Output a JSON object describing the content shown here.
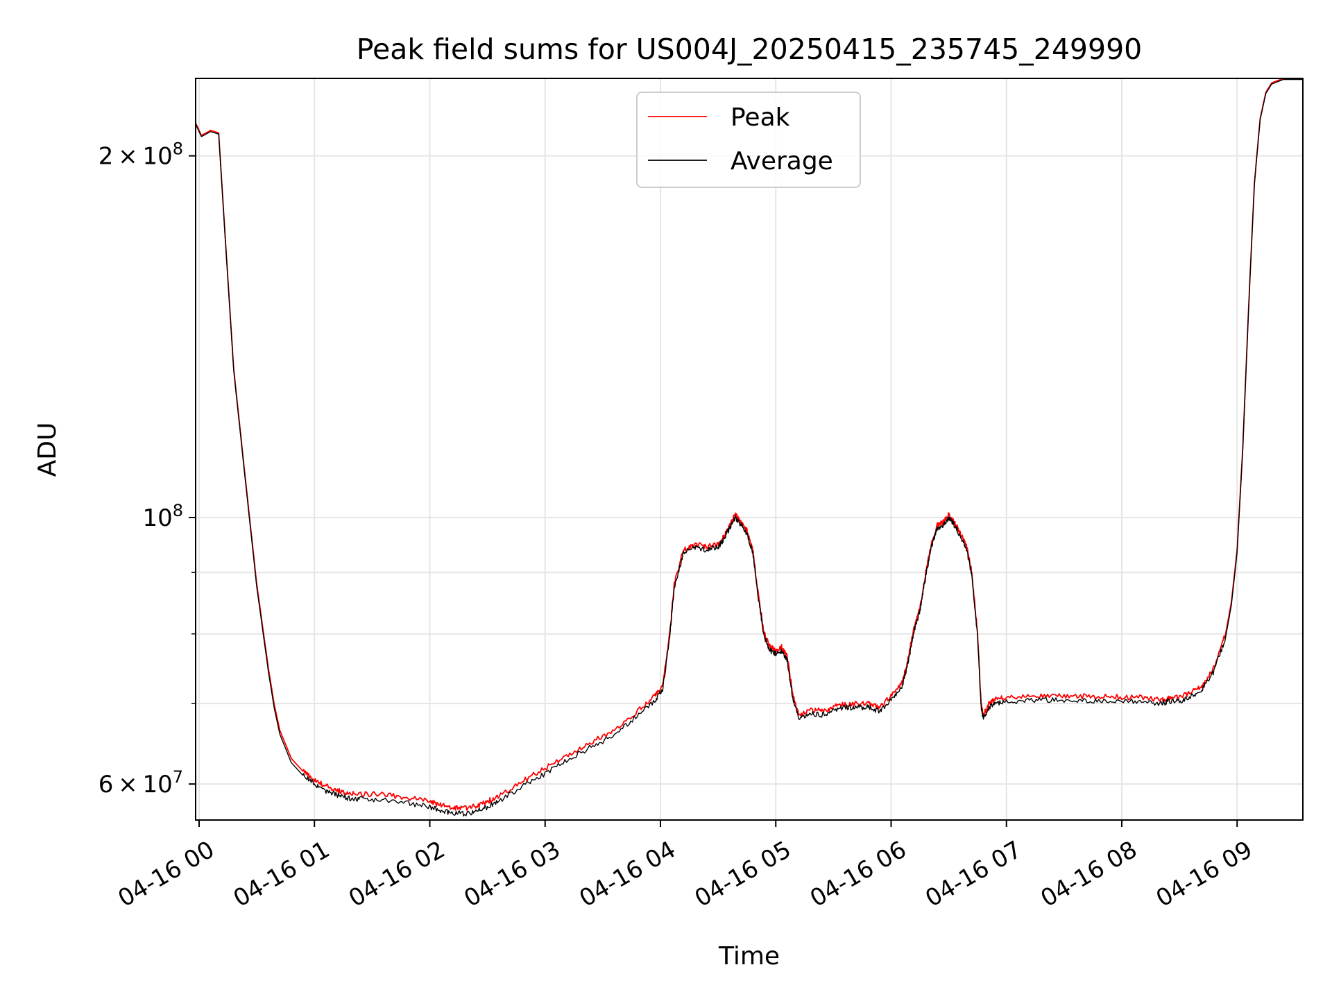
{
  "chart_data": {
    "type": "line",
    "title": "Peak field sums for US004J_20250415_235745_249990",
    "xlabel": "Time",
    "ylabel": "ADU",
    "x_unit": "hours since 04-16 00",
    "xlim": [
      -0.03,
      9.57
    ],
    "ylim": [
      56000000,
      232000000
    ],
    "yscale": "log",
    "grid": true,
    "legend_position": "top-center",
    "x_ticks": [
      {
        "value": 0,
        "label": "04-16 00"
      },
      {
        "value": 1,
        "label": "04-16 01"
      },
      {
        "value": 2,
        "label": "04-16 02"
      },
      {
        "value": 3,
        "label": "04-16 03"
      },
      {
        "value": 4,
        "label": "04-16 04"
      },
      {
        "value": 5,
        "label": "04-16 05"
      },
      {
        "value": 6,
        "label": "04-16 06"
      },
      {
        "value": 7,
        "label": "04-16 07"
      },
      {
        "value": 8,
        "label": "04-16 08"
      },
      {
        "value": 9,
        "label": "04-16 09"
      }
    ],
    "y_major_ticks": [
      {
        "value": 60000000,
        "mantissa": "6",
        "exp": "7"
      },
      {
        "value": 100000000,
        "mantissa": "",
        "exp": "8"
      },
      {
        "value": 200000000,
        "mantissa": "2",
        "exp": "8"
      }
    ],
    "y_minor_ticks": [
      70000000,
      80000000,
      90000000
    ],
    "series": [
      {
        "name": "Peak",
        "color": "#ff0000",
        "x": [
          -0.03,
          0.02,
          0.1,
          0.17,
          0.22,
          0.3,
          0.4,
          0.5,
          0.6,
          0.65,
          0.7,
          0.8,
          0.9,
          1.0,
          1.1,
          1.2,
          1.3,
          1.4,
          1.6,
          1.8,
          2.0,
          2.1,
          2.2,
          2.3,
          2.4,
          2.5,
          2.6,
          2.8,
          3.0,
          3.2,
          3.4,
          3.6,
          3.8,
          3.95,
          4.02,
          4.08,
          4.12,
          4.2,
          4.3,
          4.4,
          4.5,
          4.55,
          4.6,
          4.65,
          4.7,
          4.75,
          4.8,
          4.85,
          4.9,
          4.95,
          5.0,
          5.05,
          5.1,
          5.15,
          5.2,
          5.3,
          5.4,
          5.5,
          5.6,
          5.7,
          5.8,
          5.9,
          6.0,
          6.1,
          6.15,
          6.2,
          6.25,
          6.3,
          6.35,
          6.4,
          6.45,
          6.5,
          6.55,
          6.6,
          6.65,
          6.7,
          6.75,
          6.78,
          6.8,
          6.85,
          6.9,
          7.0,
          7.2,
          7.4,
          7.6,
          7.8,
          8.0,
          8.2,
          8.35,
          8.4,
          8.5,
          8.6,
          8.7,
          8.8,
          8.9,
          8.95,
          9.0,
          9.05,
          9.1,
          9.15,
          9.2,
          9.25,
          9.3,
          9.35,
          9.4,
          9.5,
          9.57
        ],
        "values": [
          213000000,
          208000000,
          210000000,
          209000000,
          175000000,
          133000000,
          108000000,
          88000000,
          75000000,
          70000000,
          66500000,
          63000000,
          61500000,
          60500000,
          59800000,
          59300000,
          59000000,
          58900000,
          58800000,
          58500000,
          58000000,
          57600000,
          57400000,
          57300000,
          57500000,
          58000000,
          58700000,
          60300000,
          61800000,
          63500000,
          65000000,
          66500000,
          69000000,
          71000000,
          72500000,
          80000000,
          88000000,
          94000000,
          95000000,
          94500000,
          95000000,
          96500000,
          98500000,
          100500000,
          99000000,
          97500000,
          94000000,
          86000000,
          80000000,
          78000000,
          77500000,
          78000000,
          76500000,
          71000000,
          68500000,
          69200000,
          69000000,
          69500000,
          70000000,
          70000000,
          70000000,
          69500000,
          71000000,
          73000000,
          76500000,
          81000000,
          84000000,
          90000000,
          95000000,
          98500000,
          99000000,
          100500000,
          99000000,
          97000000,
          95000000,
          90000000,
          80000000,
          70000000,
          68500000,
          70000000,
          70500000,
          70800000,
          70900000,
          71000000,
          71000000,
          70900000,
          70900000,
          70800000,
          70500000,
          70800000,
          70800000,
          71500000,
          72500000,
          75000000,
          80000000,
          85000000,
          94000000,
          115000000,
          150000000,
          190000000,
          215000000,
          226000000,
          230000000,
          231000000,
          232000000,
          232000000,
          232000000
        ]
      },
      {
        "name": "Average",
        "color": "#000000",
        "x": [
          -0.03,
          0.02,
          0.1,
          0.17,
          0.22,
          0.3,
          0.4,
          0.5,
          0.6,
          0.65,
          0.7,
          0.8,
          0.9,
          1.0,
          1.1,
          1.2,
          1.3,
          1.4,
          1.6,
          1.8,
          2.0,
          2.1,
          2.2,
          2.3,
          2.4,
          2.5,
          2.6,
          2.8,
          3.0,
          3.2,
          3.4,
          3.6,
          3.8,
          3.95,
          4.02,
          4.08,
          4.12,
          4.2,
          4.3,
          4.4,
          4.5,
          4.55,
          4.6,
          4.65,
          4.7,
          4.75,
          4.8,
          4.85,
          4.9,
          4.95,
          5.0,
          5.05,
          5.1,
          5.15,
          5.2,
          5.3,
          5.4,
          5.5,
          5.6,
          5.7,
          5.8,
          5.9,
          6.0,
          6.1,
          6.15,
          6.2,
          6.25,
          6.3,
          6.35,
          6.4,
          6.45,
          6.5,
          6.55,
          6.6,
          6.65,
          6.7,
          6.75,
          6.78,
          6.8,
          6.85,
          6.9,
          7.0,
          7.2,
          7.4,
          7.6,
          7.8,
          8.0,
          8.2,
          8.35,
          8.4,
          8.5,
          8.6,
          8.7,
          8.8,
          8.9,
          8.95,
          9.0,
          9.05,
          9.1,
          9.15,
          9.2,
          9.25,
          9.3,
          9.35,
          9.4,
          9.5,
          9.57
        ],
        "values": [
          212500000,
          207500000,
          209500000,
          208500000,
          174500000,
          132500000,
          107500000,
          87500000,
          74500000,
          69500000,
          66000000,
          62500000,
          61000000,
          60000000,
          59200000,
          58700000,
          58400000,
          58300000,
          58200000,
          57900000,
          57400000,
          57000000,
          56800000,
          56700000,
          56900000,
          57400000,
          58100000,
          59700000,
          61200000,
          62900000,
          64400000,
          65900000,
          68400000,
          70400000,
          72000000,
          79500000,
          87500000,
          93500000,
          94500000,
          94000000,
          94500000,
          96000000,
          98000000,
          100000000,
          98500000,
          97000000,
          93500000,
          85500000,
          79500000,
          77500000,
          77000000,
          77500000,
          76000000,
          70500000,
          68000000,
          68700000,
          68500000,
          69000000,
          69500000,
          69500000,
          69500000,
          69000000,
          70500000,
          72500000,
          76000000,
          80500000,
          83500000,
          89500000,
          94500000,
          98000000,
          98500000,
          100000000,
          98500000,
          96500000,
          94500000,
          89500000,
          79500000,
          69500000,
          68000000,
          69500000,
          70000000,
          70300000,
          70400000,
          70500000,
          70500000,
          70400000,
          70400000,
          70300000,
          70000000,
          70300000,
          70300000,
          71000000,
          72000000,
          74500000,
          79500000,
          84500000,
          93500000,
          114500000,
          149500000,
          189500000,
          214500000,
          225500000,
          229500000,
          230500000,
          231500000,
          231500000,
          231500000
        ]
      }
    ]
  }
}
